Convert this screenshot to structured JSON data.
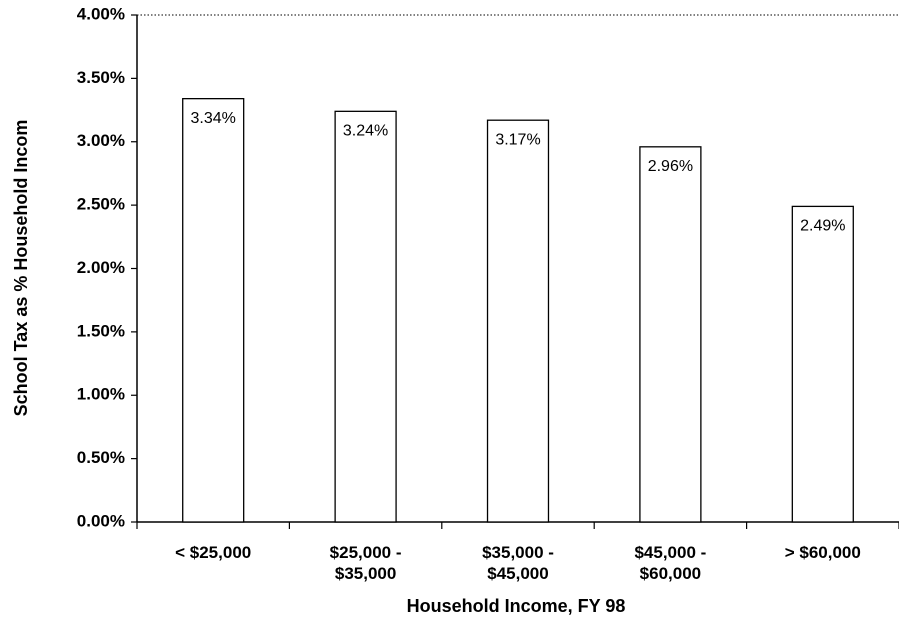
{
  "chart_data": {
    "type": "bar",
    "categories": [
      "< $25,000",
      "$25,000 - $35,000",
      "$35,000 - $45,000",
      "$45,000 - $60,000",
      "> $60,000"
    ],
    "values": [
      3.34,
      3.24,
      3.17,
      2.96,
      2.49
    ],
    "value_labels": [
      "3.34%",
      "3.24%",
      "3.17%",
      "2.96%",
      "2.49%"
    ],
    "color": "#ffffff",
    "ylim": [
      0,
      4
    ],
    "yticks": [
      {
        "value": 0,
        "label": "0.00%"
      },
      {
        "value": 0.5,
        "label": "0.50%"
      },
      {
        "value": 1,
        "label": "1.00%"
      },
      {
        "value": 1.5,
        "label": "1.50%"
      },
      {
        "value": 2,
        "label": "2.00%"
      },
      {
        "value": 2.5,
        "label": "2.50%"
      },
      {
        "value": 3,
        "label": "3.00%"
      },
      {
        "value": 3.5,
        "label": "3.50%"
      },
      {
        "value": 4,
        "label": "4.00%"
      }
    ],
    "xlabel": "Household Income, FY 98",
    "ylabel": "School Tax as % Household Incom"
  }
}
